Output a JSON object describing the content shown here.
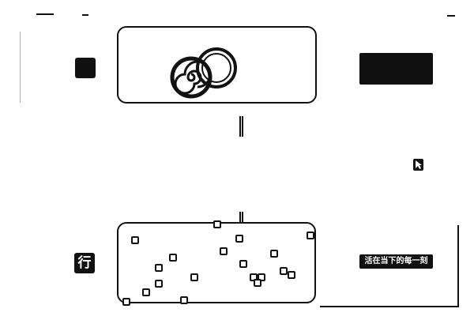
{
  "top_section": {
    "label": "",
    "caption_lines": [
      "",
      "",
      ""
    ]
  },
  "bottom_section": {
    "label": "行",
    "caption": "活在当下的每一刻"
  },
  "colors": {
    "ink": "#111111",
    "background": "#ffffff"
  },
  "icons": {
    "spiral": "spiral-icon",
    "ring": "ring-icon",
    "cursor": "cursor-icon",
    "marker": "square-marker-icon"
  }
}
